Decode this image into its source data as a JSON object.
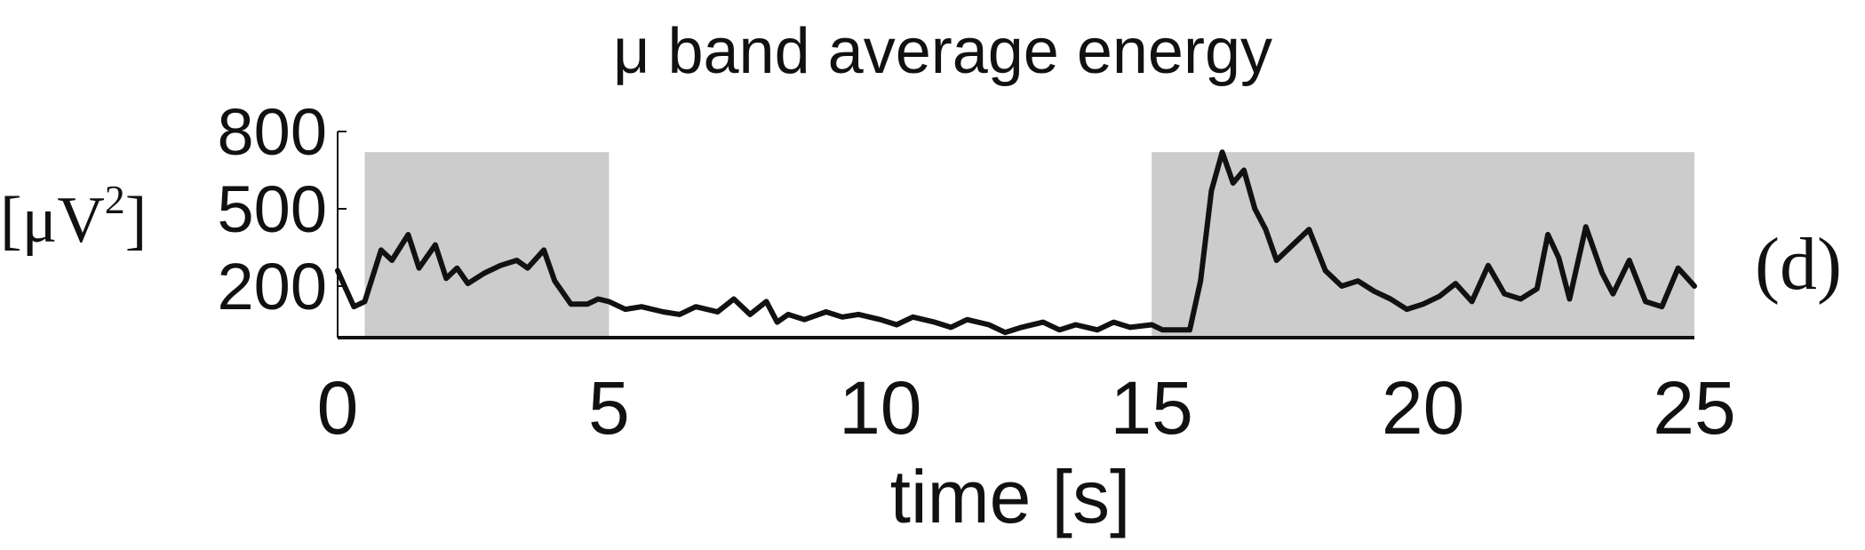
{
  "chart_data": {
    "type": "line",
    "title": "μ band average energy",
    "xlabel": "time [s]",
    "ylabel": "[μV²]",
    "ylabel_base": "[μV",
    "ylabel_exp": "2",
    "ylabel_close": "]",
    "panel_label": "(d)",
    "xlim": [
      0,
      25
    ],
    "ylim": [
      0,
      800
    ],
    "x_ticks": [
      0,
      5,
      10,
      15,
      20,
      25
    ],
    "x_tick_labels": [
      "0",
      "5",
      "10",
      "15",
      "20",
      "25"
    ],
    "y_ticks": [
      200,
      500,
      800
    ],
    "y_tick_labels": [
      "200",
      "500",
      "800"
    ],
    "grid": false,
    "shaded_intervals": [
      {
        "start": 0.5,
        "end": 5
      },
      {
        "start": 15,
        "end": 25
      }
    ],
    "shade_color": "#cccccc",
    "line_color": "#111111",
    "series": [
      {
        "x": [
          0,
          0.3,
          0.5,
          0.8,
          1.0,
          1.3,
          1.5,
          1.8,
          2.0,
          2.2,
          2.4,
          2.7,
          3.0,
          3.3,
          3.5,
          3.8,
          4.0,
          4.3,
          4.6,
          4.8,
          5.0,
          5.3,
          5.6,
          6.0,
          6.3,
          6.6,
          7.0,
          7.3,
          7.6,
          7.9,
          8.1,
          8.3,
          8.6,
          9.0,
          9.3,
          9.6,
          10.0,
          10.3,
          10.6,
          11.0,
          11.3,
          11.6,
          12.0,
          12.3,
          12.6,
          13.0,
          13.3,
          13.6,
          14.0,
          14.3,
          14.6,
          15.0,
          15.2,
          15.5,
          15.7,
          15.9,
          16.1,
          16.3,
          16.5,
          16.7,
          16.9,
          17.1,
          17.3,
          17.6,
          17.9,
          18.2,
          18.5,
          18.8,
          19.1,
          19.4,
          19.7,
          20.0,
          20.3,
          20.6,
          20.9,
          21.2,
          21.5,
          21.8,
          22.1,
          22.3,
          22.5,
          22.7,
          23.0,
          23.3,
          23.5,
          23.8,
          24.1,
          24.4,
          24.7,
          25.0
        ],
        "y": [
          260,
          120,
          140,
          340,
          300,
          400,
          270,
          360,
          230,
          270,
          210,
          250,
          280,
          300,
          270,
          340,
          220,
          130,
          130,
          150,
          140,
          110,
          120,
          100,
          90,
          120,
          100,
          150,
          90,
          140,
          60,
          90,
          70,
          100,
          80,
          90,
          70,
          50,
          80,
          60,
          40,
          70,
          50,
          20,
          40,
          60,
          30,
          50,
          30,
          60,
          40,
          50,
          30,
          30,
          30,
          220,
          570,
          720,
          600,
          650,
          500,
          420,
          300,
          360,
          420,
          260,
          200,
          220,
          180,
          150,
          110,
          130,
          160,
          210,
          140,
          280,
          170,
          150,
          190,
          400,
          310,
          150,
          430,
          250,
          170,
          300,
          140,
          120,
          270,
          200
        ]
      }
    ]
  }
}
